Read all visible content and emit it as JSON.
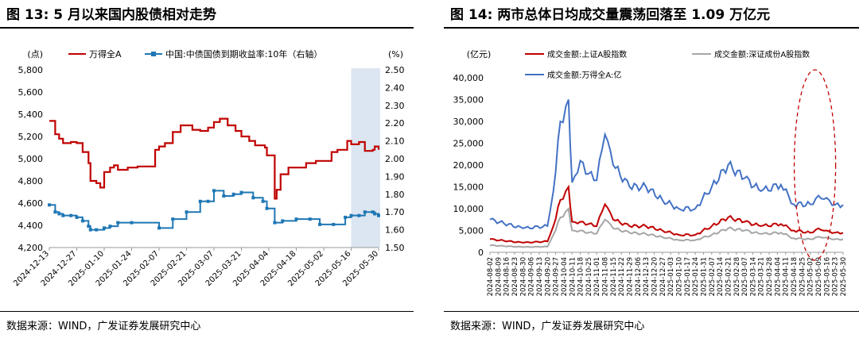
{
  "figures": [
    {
      "title": "图 13:  5 月以来国内股债相对走势",
      "source": "数据来源：WIND，广发证券发展研究中心"
    },
    {
      "title": "图 14:  两市总体日均成交量震荡回落至 1.09 万亿元",
      "source": "数据来源：WIND，广发证券发展研究中心"
    }
  ],
  "chart_data": [
    {
      "type": "line",
      "ylabel_left": "(点)",
      "ylabel_right": "(%)",
      "xlabel": "",
      "ylim_left": [
        4200,
        5800
      ],
      "ylim_right": [
        1.5,
        2.5
      ],
      "y_ticks_left": [
        "4,200",
        "4,400",
        "4,600",
        "4,800",
        "5,000",
        "5,200",
        "5,400",
        "5,600",
        "5,800"
      ],
      "y_ticks_right": [
        "1.50",
        "1.60",
        "1.70",
        "1.80",
        "1.90",
        "2.00",
        "2.10",
        "2.20",
        "2.30",
        "2.40",
        "2.50"
      ],
      "x_ticks": [
        "2024-12-13",
        "2024-12-27",
        "2025-01-10",
        "2025-01-24",
        "2025-02-07",
        "2025-02-21",
        "2025-03-07",
        "2025-03-21",
        "2025-04-04",
        "2025-04-18",
        "2025-05-02",
        "2025-05-16",
        "2025-05-30"
      ],
      "legend_position": "top",
      "highlight": {
        "x_from": "2025-05-16",
        "x_to": "2025-05-30"
      },
      "series": [
        {
          "name": "万得全A",
          "axis": "left",
          "color": "#c00000",
          "x": [
            "2024-12-13",
            "2024-12-16",
            "2024-12-18",
            "2024-12-20",
            "2024-12-24",
            "2024-12-27",
            "2024-12-30",
            "2025-01-02",
            "2025-01-03",
            "2025-01-06",
            "2025-01-08",
            "2025-01-10",
            "2025-01-13",
            "2025-01-15",
            "2025-01-17",
            "2025-01-22",
            "2025-01-27",
            "2025-02-05",
            "2025-02-07",
            "2025-02-10",
            "2025-02-14",
            "2025-02-18",
            "2025-02-21",
            "2025-02-24",
            "2025-02-28",
            "2025-03-04",
            "2025-03-07",
            "2025-03-10",
            "2025-03-14",
            "2025-03-18",
            "2025-03-21",
            "2025-03-25",
            "2025-03-28",
            "2025-04-02",
            "2025-04-03",
            "2025-04-07",
            "2025-04-08",
            "2025-04-10",
            "2025-04-14",
            "2025-04-18",
            "2025-04-23",
            "2025-04-28",
            "2025-05-06",
            "2025-05-09",
            "2025-05-14",
            "2025-05-16",
            "2025-05-20",
            "2025-05-23",
            "2025-05-27",
            "2025-05-28",
            "2025-05-30"
          ],
          "values": [
            5340,
            5220,
            5180,
            5140,
            5150,
            5140,
            5060,
            4960,
            4800,
            4780,
            4740,
            4880,
            4920,
            4940,
            4900,
            4920,
            4930,
            5080,
            5110,
            5140,
            5240,
            5300,
            5300,
            5260,
            5250,
            5280,
            5330,
            5360,
            5300,
            5250,
            5200,
            5160,
            5120,
            5100,
            5030,
            4640,
            4720,
            4860,
            4920,
            4920,
            4960,
            4980,
            5060,
            5080,
            5160,
            5130,
            5150,
            5070,
            5080,
            5110,
            5080
          ]
        },
        {
          "name": "中国:中债国债到期收益率:10年（右轴）",
          "axis": "right",
          "color": "#1f77b4",
          "x": [
            "2024-12-13",
            "2024-12-16",
            "2024-12-18",
            "2024-12-20",
            "2024-12-24",
            "2024-12-27",
            "2024-12-30",
            "2025-01-02",
            "2025-01-03",
            "2025-01-06",
            "2025-01-10",
            "2025-01-13",
            "2025-01-17",
            "2025-01-24",
            "2025-02-07",
            "2025-02-14",
            "2025-02-21",
            "2025-02-28",
            "2025-03-04",
            "2025-03-07",
            "2025-03-12",
            "2025-03-17",
            "2025-03-21",
            "2025-03-27",
            "2025-04-01",
            "2025-04-03",
            "2025-04-07",
            "2025-04-11",
            "2025-04-18",
            "2025-04-25",
            "2025-04-30",
            "2025-05-07",
            "2025-05-13",
            "2025-05-16",
            "2025-05-20",
            "2025-05-23",
            "2025-05-27",
            "2025-05-28",
            "2025-05-30"
          ],
          "values": [
            1.74,
            1.7,
            1.69,
            1.68,
            1.68,
            1.67,
            1.65,
            1.62,
            1.6,
            1.6,
            1.61,
            1.62,
            1.64,
            1.64,
            1.61,
            1.66,
            1.7,
            1.76,
            1.76,
            1.82,
            1.79,
            1.8,
            1.81,
            1.78,
            1.76,
            1.72,
            1.64,
            1.65,
            1.66,
            1.66,
            1.63,
            1.63,
            1.67,
            1.68,
            1.68,
            1.7,
            1.7,
            1.69,
            1.68
          ]
        }
      ]
    },
    {
      "type": "line",
      "ylabel": "(亿元)",
      "xlabel": "",
      "ylim": [
        0,
        40000
      ],
      "y_ticks": [
        "0",
        "5,000",
        "10,000",
        "15,000",
        "20,000",
        "25,000",
        "30,000",
        "35,000",
        "40,000"
      ],
      "x_ticks": [
        "2024-08-02",
        "2024-08-09",
        "2024-08-16",
        "2024-08-23",
        "2024-08-30",
        "2024-09-06",
        "2024-09-13",
        "2024-09-20",
        "2024-09-27",
        "2024-10-04",
        "2024-10-11",
        "2024-10-18",
        "2024-10-25",
        "2024-11-01",
        "2024-11-08",
        "2024-11-15",
        "2024-11-22",
        "2024-11-29",
        "2024-12-06",
        "2024-12-13",
        "2024-12-20",
        "2024-12-27",
        "2025-01-03",
        "2025-01-10",
        "2025-01-17",
        "2025-01-24",
        "2025-01-31",
        "2025-02-07",
        "2025-02-14",
        "2025-02-21",
        "2025-02-28",
        "2025-03-07",
        "2025-03-14",
        "2025-03-21",
        "2025-03-28",
        "2025-04-04",
        "2025-04-11",
        "2025-04-18",
        "2025-04-25",
        "2025-05-02",
        "2025-05-09",
        "2025-05-16",
        "2025-05-23",
        "2025-05-30"
      ],
      "legend_position": "top",
      "annotation": "dashed-ellipse-may-2025",
      "series": [
        {
          "name": "成交金额:上证A股指数",
          "color": "#c00000",
          "x": [
            "2024-08-02",
            "2024-08-30",
            "2024-09-20",
            "2024-09-25",
            "2024-10-01",
            "2024-10-08",
            "2024-10-11",
            "2024-10-18",
            "2024-10-25",
            "2024-11-01",
            "2024-11-08",
            "2024-11-15",
            "2024-11-29",
            "2024-12-13",
            "2024-12-27",
            "2025-01-10",
            "2025-01-24",
            "2025-02-07",
            "2025-02-21",
            "2025-03-07",
            "2025-03-21",
            "2025-04-07",
            "2025-04-18",
            "2025-05-02",
            "2025-05-09",
            "2025-05-16",
            "2025-05-23",
            "2025-05-30"
          ],
          "values": [
            3000,
            2200,
            2500,
            6000,
            12000,
            15000,
            7000,
            7000,
            6500,
            6000,
            11000,
            7500,
            6000,
            6000,
            5000,
            4000,
            4000,
            6000,
            8000,
            7000,
            6000,
            6500,
            5000,
            4500,
            5500,
            5000,
            4500,
            4500
          ]
        },
        {
          "name": "成交金额:深证成份A股指数",
          "color": "#a6a6a6",
          "x": [
            "2024-08-02",
            "2024-08-30",
            "2024-09-20",
            "2024-09-25",
            "2024-10-01",
            "2024-10-08",
            "2024-10-11",
            "2024-10-18",
            "2024-10-25",
            "2024-11-01",
            "2024-11-08",
            "2024-11-15",
            "2024-11-29",
            "2024-12-13",
            "2024-12-27",
            "2025-01-10",
            "2025-01-24",
            "2025-02-07",
            "2025-02-21",
            "2025-03-07",
            "2025-03-21",
            "2025-04-07",
            "2025-04-18",
            "2025-05-02",
            "2025-05-09",
            "2025-05-16",
            "2025-05-23",
            "2025-05-30"
          ],
          "values": [
            1600,
            1200,
            1300,
            4000,
            8000,
            10000,
            5000,
            5000,
            4500,
            4300,
            7500,
            5500,
            4500,
            4200,
            3500,
            2800,
            2800,
            4000,
            5500,
            5000,
            4200,
            4500,
            3200,
            3000,
            3600,
            3400,
            3000,
            3000
          ]
        },
        {
          "name": "成交金额:万得全A:亿",
          "color": "#4472c4",
          "x": [
            "2024-08-02",
            "2024-08-30",
            "2024-09-20",
            "2024-09-25",
            "2024-10-01",
            "2024-10-08",
            "2024-10-11",
            "2024-10-18",
            "2024-10-25",
            "2024-11-01",
            "2024-11-08",
            "2024-11-15",
            "2024-11-29",
            "2024-12-13",
            "2024-12-27",
            "2025-01-10",
            "2025-01-24",
            "2025-02-07",
            "2025-02-21",
            "2025-03-07",
            "2025-03-21",
            "2025-04-07",
            "2025-04-18",
            "2025-05-02",
            "2025-05-09",
            "2025-05-16",
            "2025-05-23",
            "2025-05-30"
          ],
          "values": [
            7500,
            5500,
            6000,
            14000,
            30000,
            35000,
            16000,
            21000,
            18000,
            16500,
            27000,
            20000,
            15000,
            15000,
            12000,
            10000,
            10000,
            15000,
            20000,
            17000,
            14000,
            15500,
            11000,
            11000,
            13000,
            12500,
            10900,
            10900
          ]
        }
      ]
    }
  ]
}
